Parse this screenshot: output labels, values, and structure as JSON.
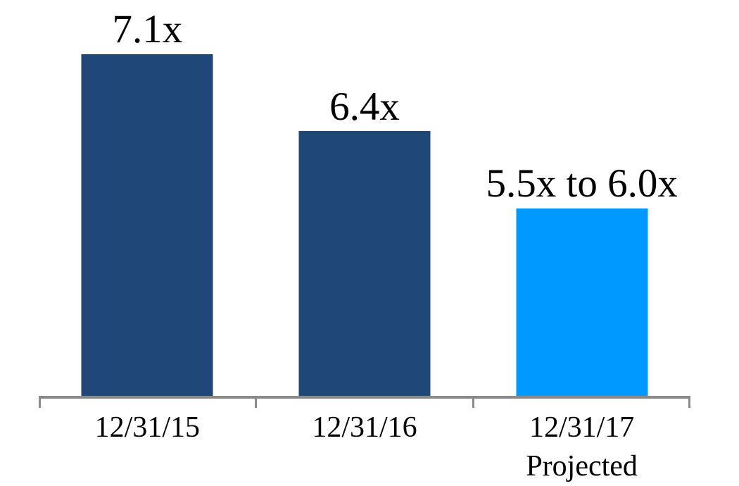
{
  "page": {
    "background_color": "#FFFFFF"
  },
  "chart_data": {
    "type": "bar",
    "title": "",
    "xlabel": "",
    "ylabel": "",
    "categories": [
      "12/31/15",
      "12/31/16",
      "12/31/17 Projected"
    ],
    "values": [
      7.1,
      6.4,
      5.7
    ],
    "bars": [
      {
        "category_line1": "12/31/15",
        "category_line2": "",
        "value": 7.1,
        "data_label": "7.1x",
        "color": "#1F4878"
      },
      {
        "category_line1": "12/31/16",
        "category_line2": "",
        "value": 6.4,
        "data_label": "6.4x",
        "color": "#1F4878"
      },
      {
        "category_line1": "12/31/17",
        "category_line2": "Projected",
        "value": 5.7,
        "value_range": [
          5.5,
          6.0
        ],
        "data_label": "5.5x to 6.0x",
        "color": "#0099FF"
      }
    ],
    "ylim": [
      4.0,
      7.5
    ],
    "y_axis_visible": false,
    "gridlines": false,
    "legend": "none",
    "data_labels_position": "above-bar",
    "axis_color": "#8A8A8A",
    "label_color": "#000000"
  }
}
